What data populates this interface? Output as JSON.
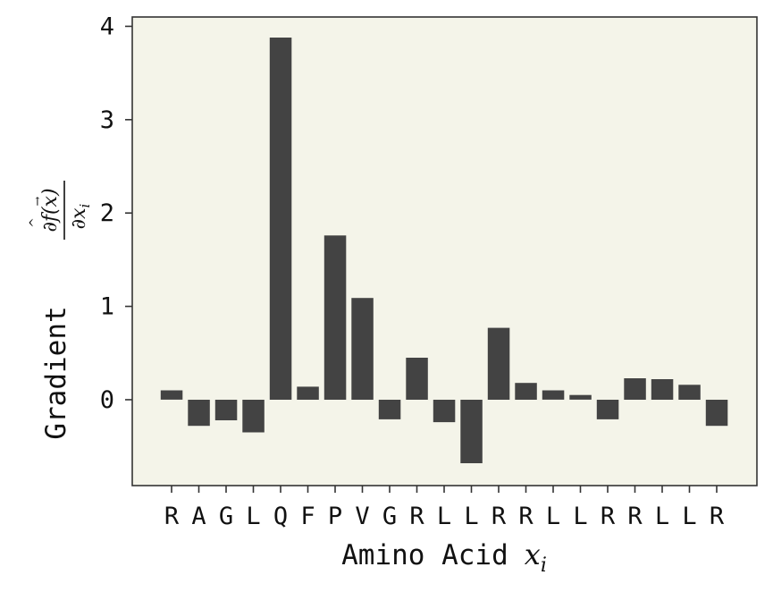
{
  "chart_data": {
    "type": "bar",
    "categories": [
      "R",
      "A",
      "G",
      "L",
      "Q",
      "F",
      "P",
      "V",
      "G",
      "R",
      "L",
      "L",
      "R",
      "R",
      "L",
      "L",
      "R",
      "R",
      "L",
      "L",
      "R"
    ],
    "values": [
      0.1,
      -0.28,
      -0.22,
      -0.35,
      3.88,
      0.14,
      1.76,
      1.09,
      -0.21,
      0.45,
      -0.24,
      -0.68,
      0.77,
      0.18,
      0.1,
      0.05,
      -0.21,
      0.23,
      0.22,
      0.16,
      -0.28
    ],
    "title": "",
    "xlabel": "Amino Acid",
    "xlabel_math": "x",
    "xlabel_math_sub": "i",
    "ylabel": "Gradient",
    "ylabel_math_num": "∂f(x)",
    "ylabel_math_den": "∂x",
    "ylabel_math_den_sub": "i",
    "ylim": [
      -0.92,
      4.1
    ],
    "yticks": [
      0,
      1,
      2,
      3,
      4
    ],
    "ytick_labels": [
      "0",
      "1",
      "2",
      "3",
      "4"
    ],
    "grid": false,
    "legend": "none",
    "colors": {
      "bar": "#434343",
      "plot_background": "#f4f4e9",
      "axes": "#333333"
    }
  }
}
